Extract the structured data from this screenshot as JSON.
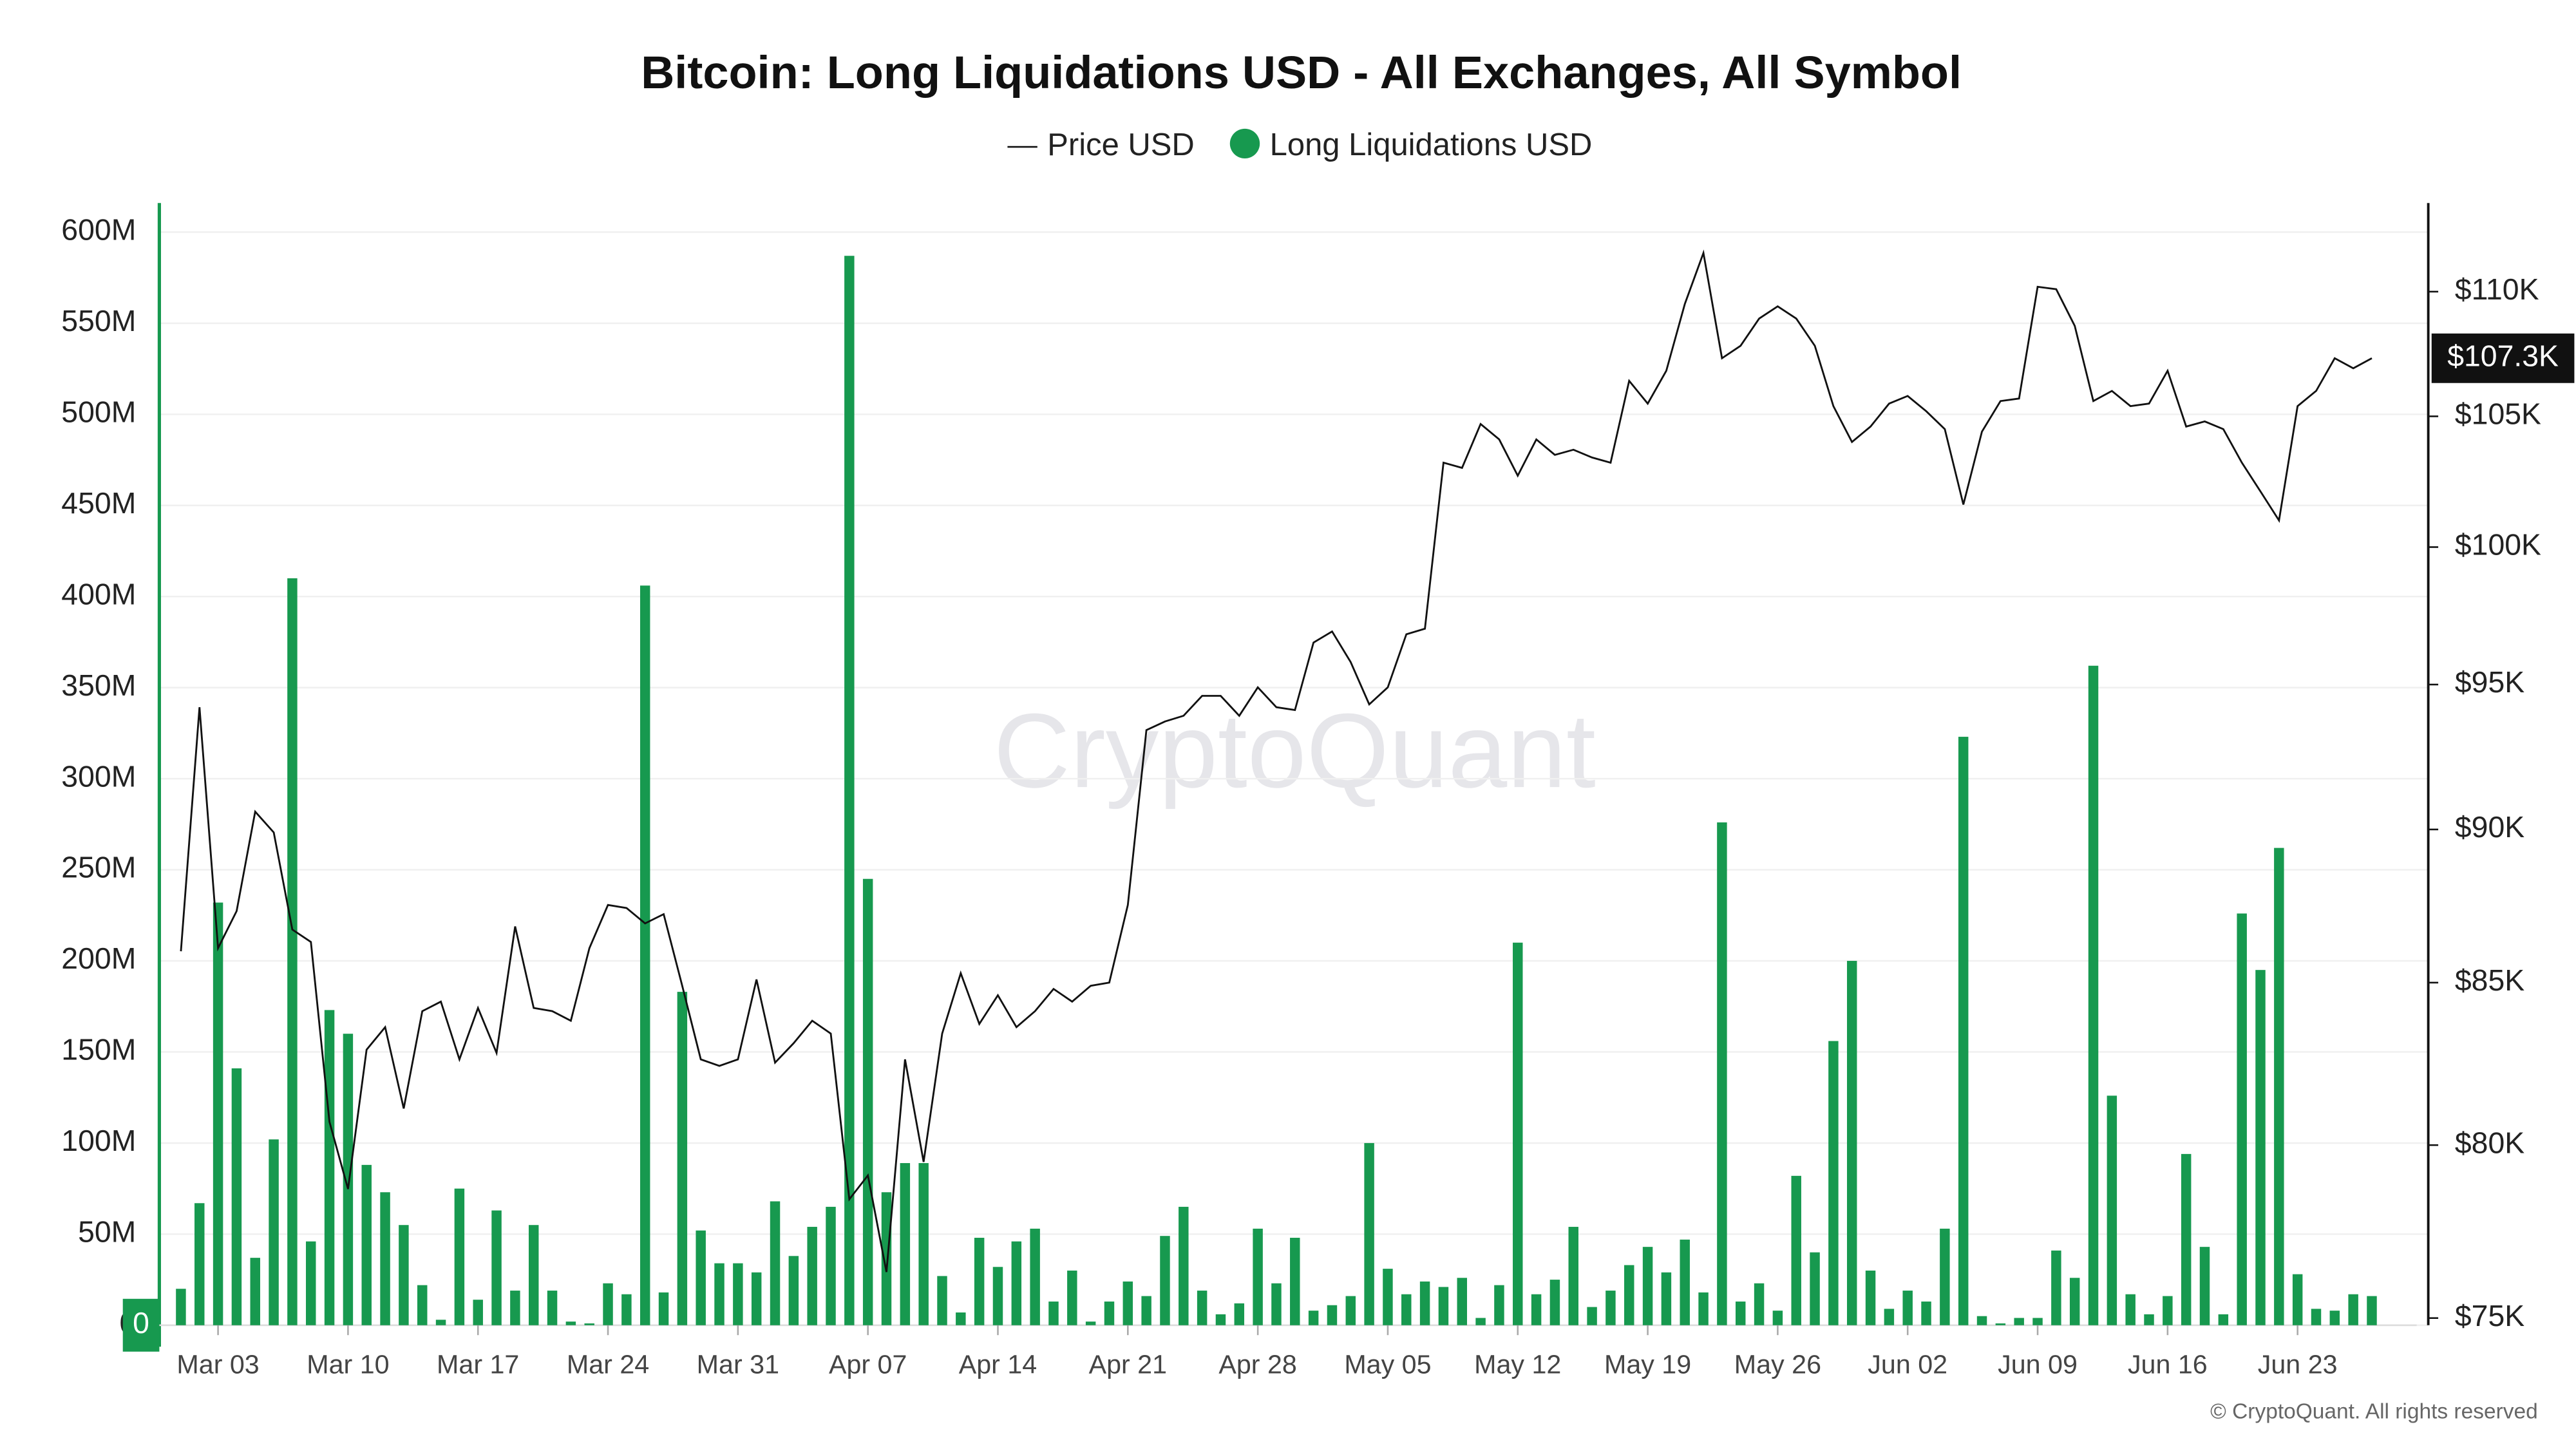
{
  "chart_data": {
    "type": "bar",
    "title": "Bitcoin: Long Liquidations USD - All Exchanges, All Symbol",
    "watermark": "CryptoQuant",
    "footer": "© CryptoQuant. All rights reserved",
    "current_price_label": "$107.3K",
    "categories": [
      null,
      null,
      "Mar 03",
      null,
      null,
      null,
      null,
      null,
      null,
      "Mar 10",
      null,
      null,
      null,
      null,
      null,
      null,
      "Mar 17",
      null,
      null,
      null,
      null,
      null,
      null,
      "Mar 24",
      null,
      null,
      null,
      null,
      null,
      null,
      "Mar 31",
      null,
      null,
      null,
      null,
      null,
      null,
      "Apr 07",
      null,
      null,
      null,
      null,
      null,
      null,
      "Apr 14",
      null,
      null,
      null,
      null,
      null,
      null,
      "Apr 21",
      null,
      null,
      null,
      null,
      null,
      null,
      "Apr 28",
      null,
      null,
      null,
      null,
      null,
      null,
      "May 05",
      null,
      null,
      null,
      null,
      null,
      null,
      "May 12",
      null,
      null,
      null,
      null,
      null,
      null,
      "May 19",
      null,
      null,
      null,
      null,
      null,
      null,
      "May 26",
      null,
      null,
      null,
      null,
      null,
      null,
      "Jun 02",
      null,
      null,
      null,
      null,
      null,
      null,
      "Jun 09",
      null,
      null,
      null,
      null,
      null,
      null,
      "Jun 16",
      null,
      null,
      null,
      null,
      null,
      null,
      "Jun 23",
      null,
      null,
      null,
      null
    ],
    "series": [
      {
        "name": "Price USD",
        "type": "line",
        "axis": "y2",
        "color": "#111111",
        "values": [
          86000,
          94200,
          86100,
          87300,
          90600,
          89900,
          86700,
          86300,
          80700,
          78700,
          82900,
          83600,
          81100,
          84100,
          84400,
          82600,
          84200,
          82800,
          86800,
          84200,
          84100,
          83800,
          86100,
          87500,
          87400,
          86900,
          87200,
          84900,
          82600,
          82400,
          82600,
          85100,
          82500,
          83100,
          83800,
          83400,
          78400,
          79100,
          76300,
          82600,
          79500,
          83400,
          85300,
          83700,
          84600,
          83600,
          84100,
          84800,
          84400,
          84900,
          85000,
          87500,
          93400,
          93700,
          93900,
          94600,
          94600,
          93900,
          94900,
          94200,
          94100,
          96500,
          96900,
          95800,
          94300,
          94900,
          96800,
          97000,
          103200,
          103000,
          104700,
          104100,
          102700,
          104100,
          103500,
          103700,
          103400,
          103200,
          106400,
          105500,
          106800,
          109500,
          111600,
          107300,
          107800,
          108900,
          109400,
          108900,
          107800,
          105400,
          104000,
          104600,
          105500,
          105800,
          105200,
          104500,
          101600,
          104400,
          105600,
          105700,
          110200,
          110100,
          108600,
          105600,
          106000,
          105400,
          105500,
          106800,
          104600,
          104800,
          104500,
          103200,
          102100,
          101000,
          105400,
          106000,
          107300,
          106900,
          107300
        ]
      },
      {
        "name": "Long Liquidations USD",
        "type": "bar",
        "color": "#17994f",
        "values": [
          20000000,
          67000000,
          232000000,
          141000000,
          37000000,
          102000000,
          410000000,
          46000000,
          173000000,
          160000000,
          88000000,
          73000000,
          55000000,
          22000000,
          3000000,
          75000000,
          14000000,
          63000000,
          19000000,
          55000000,
          19000000,
          2000000,
          1000000,
          23000000,
          17000000,
          406000000,
          18000000,
          183000000,
          52000000,
          34000000,
          34000000,
          29000000,
          68000000,
          38000000,
          54000000,
          65000000,
          587000000,
          245000000,
          73000000,
          89000000,
          89000000,
          27000000,
          7000000,
          48000000,
          32000000,
          46000000,
          53000000,
          13000000,
          30000000,
          2000000,
          13000000,
          24000000,
          16000000,
          49000000,
          65000000,
          19000000,
          6000000,
          12000000,
          53000000,
          23000000,
          48000000,
          8000000,
          11000000,
          16000000,
          100000000,
          31000000,
          17000000,
          24000000,
          21000000,
          26000000,
          4000000,
          22000000,
          210000000,
          17000000,
          25000000,
          54000000,
          10000000,
          19000000,
          33000000,
          43000000,
          29000000,
          47000000,
          18000000,
          276000000,
          13000000,
          23000000,
          8000000,
          82000000,
          40000000,
          156000000,
          200000000,
          30000000,
          9000000,
          19000000,
          13000000,
          53000000,
          323000000,
          5000000,
          1000000,
          4000000,
          4000000,
          41000000,
          26000000,
          362000000,
          126000000,
          17000000,
          6000000,
          16000000,
          94000000,
          43000000,
          6000000,
          226000000,
          195000000,
          262000000,
          28000000,
          9000000,
          8000000,
          17000000,
          16000000
        ]
      }
    ],
    "ylim": [
      0,
      616000000
    ],
    "yticks": [
      0,
      {
        "value": 50000000,
        "label": "50M"
      },
      {
        "value": 100000000,
        "label": "100M"
      },
      {
        "value": 150000000,
        "label": "150M"
      },
      {
        "value": 200000000,
        "label": "200M"
      },
      {
        "value": 250000000,
        "label": "250M"
      },
      {
        "value": 300000000,
        "label": "300M"
      },
      {
        "value": 350000000,
        "label": "350M"
      },
      {
        "value": 400000000,
        "label": "400M"
      },
      {
        "value": 450000000,
        "label": "450M"
      },
      {
        "value": 500000000,
        "label": "500M"
      },
      {
        "value": 550000000,
        "label": "550M"
      },
      {
        "value": 600000000,
        "label": "600M"
      }
    ],
    "y2lim": [
      74800,
      113700
    ],
    "y2scale": "log",
    "y2ticks": [
      {
        "value": 75000,
        "label": "$75K"
      },
      {
        "value": 80000,
        "label": "$80K"
      },
      {
        "value": 85000,
        "label": "$85K"
      },
      {
        "value": 90000,
        "label": "$90K"
      },
      {
        "value": 95000,
        "label": "$95K"
      },
      {
        "value": 100000,
        "label": "$100K"
      },
      {
        "value": 105000,
        "label": "$105K"
      },
      {
        "value": 110000,
        "label": "$110K"
      }
    ],
    "grid": true,
    "legend": "top"
  }
}
